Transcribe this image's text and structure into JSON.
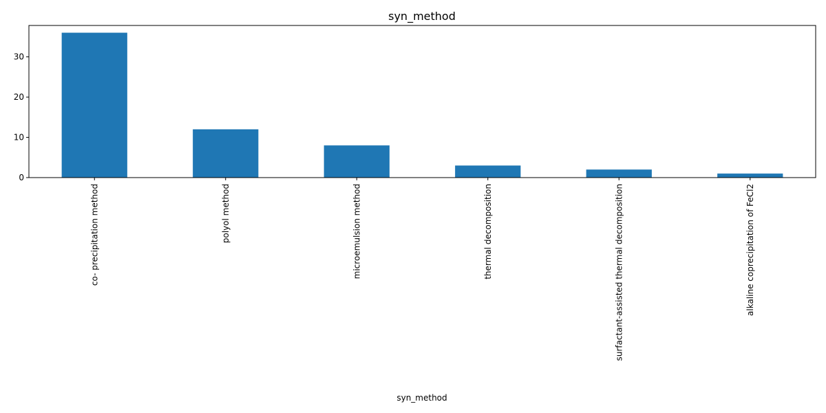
{
  "chart_data": {
    "type": "bar",
    "title": "syn_method",
    "xlabel": "syn_method",
    "ylabel": "",
    "categories": [
      "co- precipitation method",
      "polyol method",
      "microemulsion method",
      "thermal decomposition",
      "surfactant-assisted thermal decomposition",
      "alkaline coprecipitation of FeCl2"
    ],
    "values": [
      36,
      12,
      8,
      3,
      2,
      1
    ],
    "ylim": [
      0,
      37.8
    ],
    "yticks": [
      0,
      10,
      20,
      30
    ],
    "bar_color": "#1f77b4",
    "grid": false,
    "legend": "none"
  }
}
